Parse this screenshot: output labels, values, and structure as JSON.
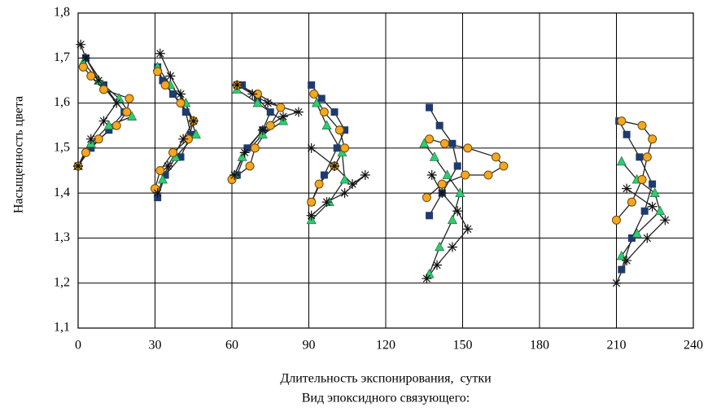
{
  "chart_data": {
    "type": "line",
    "y_label": "Насыщенность цвета",
    "x_label": "Длительность экспонирования,  сутки",
    "caption": "Вид эпоксидного связующего:",
    "xlim": [
      0,
      240
    ],
    "xticks": [
      0,
      30,
      60,
      90,
      120,
      150,
      180,
      210,
      240
    ],
    "ylim": [
      1.1,
      1.8
    ],
    "yticks": [
      {
        "value": 1.1,
        "label": "1,1"
      },
      {
        "value": 1.2,
        "label": "1,2"
      },
      {
        "value": 1.3,
        "label": "1,3"
      },
      {
        "value": 1.4,
        "label": "1,4"
      },
      {
        "value": 1.5,
        "label": "1,5"
      },
      {
        "value": 1.6,
        "label": "1,6"
      },
      {
        "value": 1.7,
        "label": "1,7"
      },
      {
        "value": 1.8,
        "label": "1,8"
      }
    ],
    "grid": true,
    "series": [
      {
        "color": "#1f3b6e",
        "marker": "square",
        "x": [
          0,
          5,
          12,
          18,
          10,
          3,
          null,
          31,
          34,
          40,
          44,
          42,
          37,
          33,
          31,
          null,
          62,
          66,
          72,
          75,
          70,
          64,
          null,
          91,
          96,
          101,
          104,
          100,
          95,
          91,
          null,
          137,
          142,
          148,
          146,
          141,
          137,
          null,
          212,
          216,
          221,
          224,
          219,
          214,
          211
        ],
        "y": [
          1.46,
          1.5,
          1.54,
          1.58,
          1.64,
          1.7,
          null,
          1.39,
          1.44,
          1.48,
          1.53,
          1.58,
          1.62,
          1.65,
          1.68,
          null,
          1.44,
          1.5,
          1.54,
          1.58,
          1.61,
          1.64,
          null,
          1.38,
          1.44,
          1.5,
          1.54,
          1.58,
          1.61,
          1.64,
          null,
          1.35,
          1.4,
          1.46,
          1.51,
          1.55,
          1.59,
          null,
          1.23,
          1.3,
          1.36,
          1.42,
          1.48,
          1.53,
          1.56
        ]
      },
      {
        "color": "#2ecc71",
        "marker": "triangle",
        "x": [
          0,
          5,
          12,
          21,
          16,
          8,
          2,
          null,
          33,
          38,
          46,
          42,
          36,
          31,
          null,
          61,
          64,
          72,
          80,
          70,
          62,
          null,
          91,
          98,
          104,
          103,
          97,
          93,
          null,
          137,
          141,
          146,
          149,
          144,
          139,
          135,
          null,
          212,
          218,
          227,
          225,
          218,
          212
        ],
        "y": [
          1.46,
          1.51,
          1.55,
          1.57,
          1.61,
          1.65,
          1.69,
          null,
          1.43,
          1.48,
          1.53,
          1.6,
          1.64,
          1.68,
          null,
          1.44,
          1.48,
          1.53,
          1.56,
          1.6,
          1.63,
          null,
          1.34,
          1.38,
          1.43,
          1.49,
          1.55,
          1.6,
          null,
          1.22,
          1.28,
          1.34,
          1.4,
          1.44,
          1.48,
          1.51,
          null,
          1.26,
          1.31,
          1.36,
          1.4,
          1.43,
          1.47
        ]
      },
      {
        "color": "#f5a623",
        "marker": "circle",
        "x": [
          0,
          3,
          8,
          15,
          19,
          20,
          10,
          5,
          2,
          null,
          30,
          32,
          37,
          43,
          45,
          40,
          34,
          31,
          null,
          60,
          67,
          69,
          75,
          79,
          70,
          62,
          null,
          91,
          94,
          100,
          104,
          102,
          96,
          92,
          null,
          136,
          142,
          151,
          160,
          166,
          163,
          152,
          143,
          137,
          null,
          210,
          216,
          220,
          222,
          224,
          220,
          212
        ],
        "y": [
          1.46,
          1.49,
          1.52,
          1.55,
          1.58,
          1.61,
          1.63,
          1.66,
          1.68,
          null,
          1.41,
          1.45,
          1.49,
          1.52,
          1.56,
          1.6,
          1.64,
          1.67,
          null,
          1.43,
          1.46,
          1.5,
          1.55,
          1.59,
          1.62,
          1.64,
          null,
          1.38,
          1.42,
          1.46,
          1.5,
          1.54,
          1.58,
          1.62,
          null,
          1.39,
          1.42,
          1.44,
          1.44,
          1.46,
          1.48,
          1.5,
          1.51,
          1.52,
          null,
          1.34,
          1.38,
          1.43,
          1.48,
          1.52,
          1.55,
          1.56
        ]
      },
      {
        "color": "#111111",
        "marker": "star",
        "x": [
          0,
          5,
          10,
          15,
          8,
          3,
          1,
          null,
          31,
          35,
          41,
          45,
          40,
          36,
          32,
          null,
          61,
          65,
          72,
          80,
          86,
          74,
          68,
          62,
          null,
          91,
          100,
          107,
          112,
          104,
          97,
          91,
          null,
          136,
          140,
          146,
          152,
          148,
          142,
          138,
          null,
          210,
          214,
          222,
          229,
          224,
          214
        ],
        "y": [
          1.46,
          1.52,
          1.56,
          1.6,
          1.65,
          1.7,
          1.73,
          null,
          1.4,
          1.46,
          1.52,
          1.56,
          1.62,
          1.66,
          1.71,
          null,
          1.44,
          1.49,
          1.54,
          1.57,
          1.58,
          1.6,
          1.62,
          1.64,
          null,
          1.5,
          1.46,
          1.42,
          1.44,
          1.4,
          1.38,
          1.35,
          null,
          1.21,
          1.24,
          1.28,
          1.32,
          1.36,
          1.4,
          1.44,
          null,
          1.2,
          1.25,
          1.3,
          1.34,
          1.37,
          1.41
        ]
      }
    ]
  }
}
